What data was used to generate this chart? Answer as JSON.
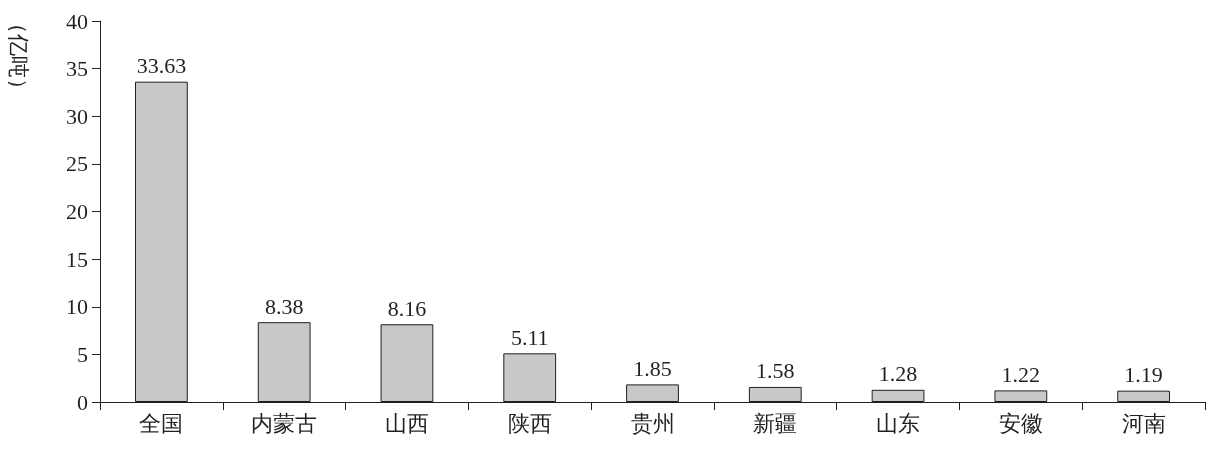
{
  "chart_data": {
    "type": "bar",
    "ylabel": "（亿吨）",
    "categories": [
      "全国",
      "内蒙古",
      "山西",
      "陕西",
      "贵州",
      "新疆",
      "山东",
      "安徽",
      "河南"
    ],
    "values": [
      33.63,
      8.38,
      8.16,
      5.11,
      1.85,
      1.58,
      1.28,
      1.22,
      1.19
    ],
    "color": "#c8c8c8",
    "ylim": [
      0,
      40
    ],
    "yticks": [
      0,
      5,
      10,
      15,
      20,
      25,
      30,
      35,
      40
    ],
    "data_labels": true,
    "grid": false
  }
}
